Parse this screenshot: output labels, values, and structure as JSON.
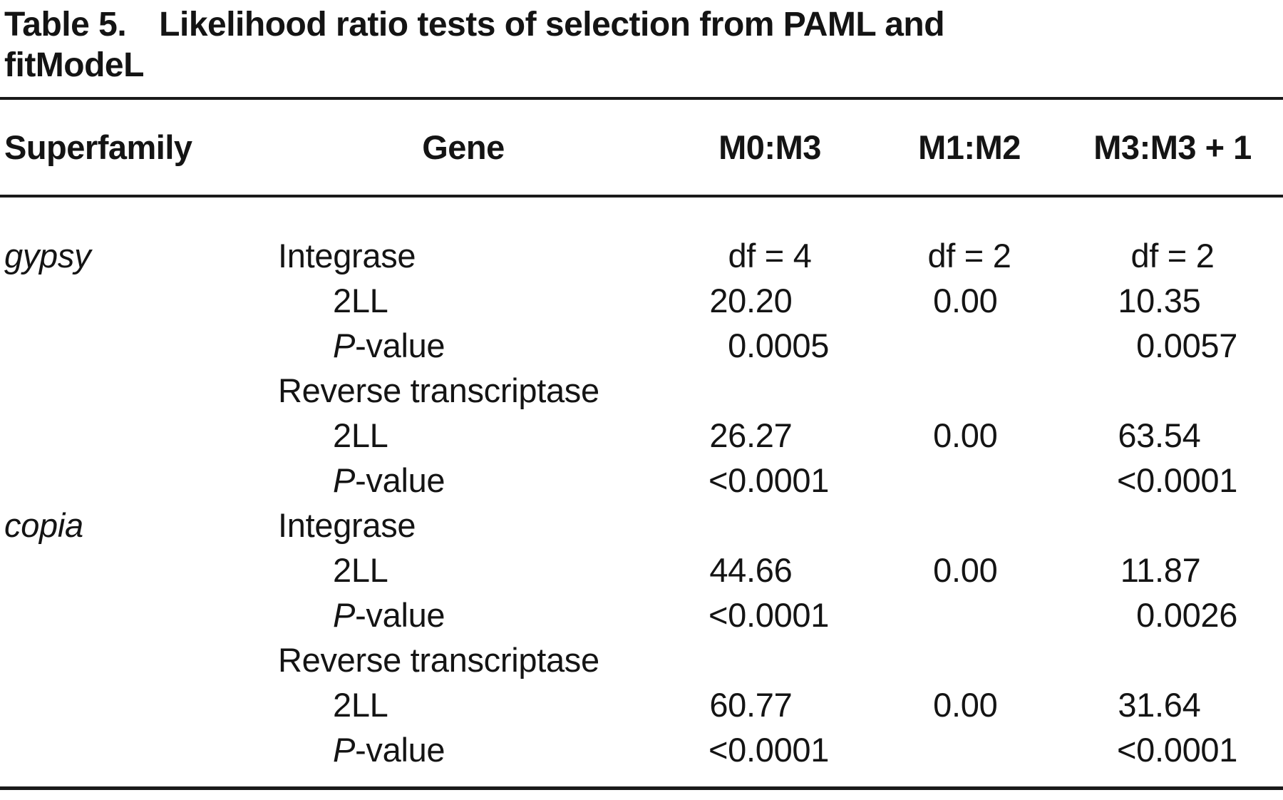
{
  "title": {
    "label": "Table 5.",
    "line1": "Likelihood ratio tests of selection from PAML and",
    "line2": "fitModeL"
  },
  "columns": [
    "Superfamily",
    "Gene",
    "M0:M3",
    "M1:M2",
    "M3:M3 + 1"
  ],
  "rows": [
    {
      "superfamily": "gypsy",
      "gene": "Integrase",
      "indent": 1,
      "pItalic": false,
      "values": [
        "df = 4",
        "df = 2",
        "df = 2"
      ]
    },
    {
      "superfamily": "",
      "gene": "2LL",
      "indent": 2,
      "pItalic": false,
      "values": [
        "20.20",
        "0.00",
        "10.35"
      ]
    },
    {
      "superfamily": "",
      "gene": "P-value",
      "indent": 2,
      "pItalic": true,
      "values": [
        "0.0005",
        "",
        "0.0057"
      ]
    },
    {
      "superfamily": "",
      "gene": "Reverse transcriptase",
      "indent": 1,
      "pItalic": false,
      "values": [
        "",
        "",
        ""
      ]
    },
    {
      "superfamily": "",
      "gene": "2LL",
      "indent": 2,
      "pItalic": false,
      "values": [
        "26.27",
        "0.00",
        "63.54"
      ]
    },
    {
      "superfamily": "",
      "gene": "P-value",
      "indent": 2,
      "pItalic": true,
      "values": [
        "<0.0001",
        "",
        "<0.0001"
      ]
    },
    {
      "superfamily": "copia",
      "gene": "Integrase",
      "indent": 1,
      "pItalic": false,
      "values": [
        "",
        "",
        ""
      ]
    },
    {
      "superfamily": "",
      "gene": "2LL",
      "indent": 2,
      "pItalic": false,
      "values": [
        "44.66",
        "0.00",
        "11.87"
      ]
    },
    {
      "superfamily": "",
      "gene": "P-value",
      "indent": 2,
      "pItalic": true,
      "values": [
        "<0.0001",
        "",
        "0.0026"
      ]
    },
    {
      "superfamily": "",
      "gene": "Reverse transcriptase",
      "indent": 1,
      "pItalic": false,
      "values": [
        "",
        "",
        ""
      ]
    },
    {
      "superfamily": "",
      "gene": "2LL",
      "indent": 2,
      "pItalic": false,
      "values": [
        "60.77",
        "0.00",
        "31.64"
      ]
    },
    {
      "superfamily": "",
      "gene": "P-value",
      "indent": 2,
      "pItalic": true,
      "values": [
        "<0.0001",
        "",
        "<0.0001"
      ]
    }
  ],
  "colors": {
    "text": "#141414",
    "rule": "#1a1a1a",
    "background": "#ffffff"
  }
}
